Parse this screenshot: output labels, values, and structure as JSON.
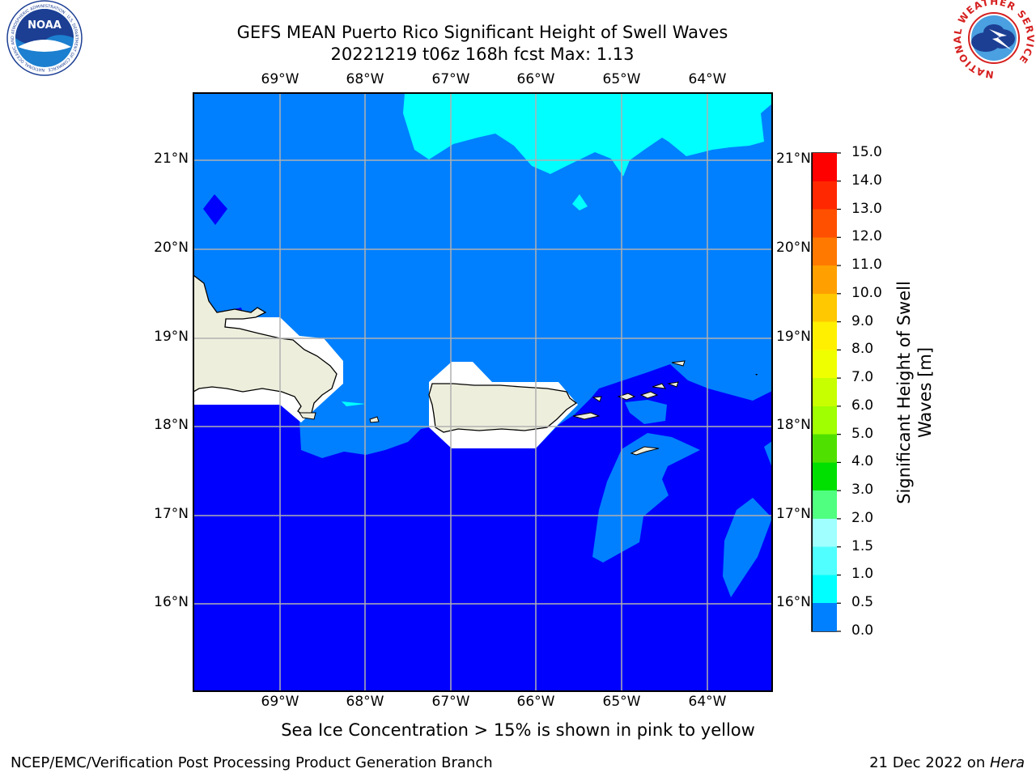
{
  "header": {
    "title_line1": "GEFS MEAN Puerto Rico Significant Height of Swell Waves",
    "title_line2": "20221219 t06z 168h fcst   Max: 1.13"
  },
  "logos": {
    "noaa_text": "NOAA",
    "noaa_ring_text": "NATIONAL OCEANIC AND ATMOSPHERIC ADMINISTRATION · U.S. DEPARTMENT OF COMMERCE",
    "nws_ring_text": "NATIONAL WEATHER SERVICE"
  },
  "map": {
    "lon_labels": [
      "69°W",
      "68°W",
      "67°W",
      "66°W",
      "65°W",
      "64°W"
    ],
    "lat_labels": [
      "21°N",
      "20°N",
      "19°N",
      "18°N",
      "17°N",
      "16°N"
    ],
    "colors": {
      "band_0_0p5": "#0000ff",
      "band_0p5_1": "#0080ff",
      "band_1_1p5": "#00ffff",
      "land": "#eeeedd",
      "grid": "#b0b0b0"
    }
  },
  "colorbar": {
    "label_line1": "Significant Height of Swell",
    "label_line2": "Waves [m]",
    "ticks": [
      "15.0",
      "14.0",
      "13.0",
      "12.0",
      "11.0",
      "10.0",
      "9.0",
      "8.0",
      "7.0",
      "6.0",
      "5.0",
      "4.0",
      "3.0",
      "2.0",
      "1.5",
      "1.0",
      "0.5",
      "0.0"
    ],
    "colors": [
      "#ff0000",
      "#ff2800",
      "#ff5000",
      "#ff7800",
      "#ffa000",
      "#ffc800",
      "#fff000",
      "#f0ff00",
      "#c8ff00",
      "#a0ff00",
      "#50e000",
      "#00e000",
      "#50ff80",
      "#a0ffff",
      "#50ffff",
      "#00ffff",
      "#0080ff",
      "#0000ff"
    ]
  },
  "caption": "Sea Ice Concentration > 15% is shown in pink to yellow",
  "footer": {
    "left": "NCEP/EMC/Verification Post Processing Product Generation Branch",
    "right_prefix": "21 Dec 2022 on ",
    "right_italic": "Hera"
  }
}
